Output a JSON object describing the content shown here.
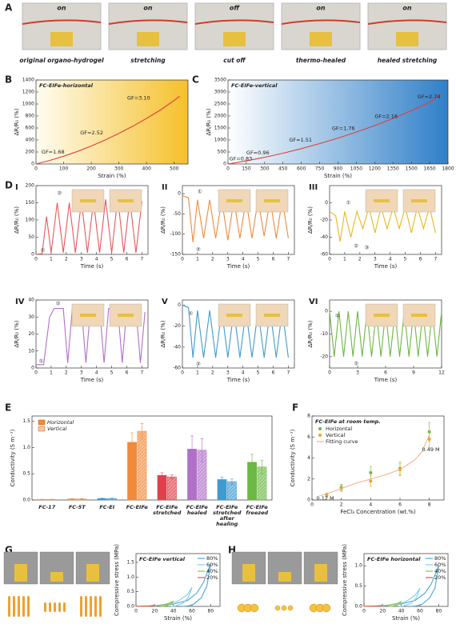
{
  "panel_labels": [
    "A",
    "B",
    "C",
    "D",
    "E",
    "F",
    "G",
    "H"
  ],
  "panel_a": {
    "states": [
      "on",
      "on",
      "off",
      "on",
      "on"
    ],
    "captions": [
      "original organo-hydrogel",
      "stretching",
      "cut off",
      "thermo-healed",
      "healed stretching"
    ]
  },
  "chart_data": [
    {
      "type": "line",
      "title": "FC-EIFe-horizontal",
      "xlabel": "Strain (%)",
      "ylabel": "ΔR/R₀ (%)",
      "color": "#e0403a",
      "background": [
        "#fffdf2",
        "#f5c02a"
      ],
      "xlim": [
        0,
        550
      ],
      "xticks": [
        0,
        100,
        200,
        300,
        400,
        500
      ],
      "ylim": [
        0,
        1400
      ],
      "yticks": [
        0,
        200,
        400,
        600,
        800,
        1000,
        1200,
        1400
      ],
      "x": [
        0,
        50,
        100,
        150,
        200,
        250,
        300,
        350,
        400,
        450,
        500,
        520
      ],
      "values": [
        0,
        60,
        130,
        210,
        300,
        400,
        510,
        630,
        760,
        900,
        1060,
        1130
      ],
      "annotations": [
        {
          "text": "GF=1.68",
          "x": 20,
          "y": 200
        },
        {
          "text": "GF=2.52",
          "x": 160,
          "y": 520
        },
        {
          "text": "GF=3.10",
          "x": 330,
          "y": 1100
        }
      ]
    },
    {
      "type": "line",
      "title": "FC-EIFe-vertical",
      "xlabel": "Strain (%)",
      "ylabel": "ΔR/R₀ (%)",
      "color": "#e0403a",
      "background": [
        "#ffffff",
        "#2f7fc8"
      ],
      "xlim": [
        0,
        1800
      ],
      "xticks": [
        0,
        150,
        300,
        450,
        600,
        750,
        900,
        1050,
        1200,
        1350,
        1500,
        1650,
        1800
      ],
      "ylim": [
        0,
        3500
      ],
      "yticks": [
        0,
        500,
        1000,
        1500,
        2000,
        2500,
        3000,
        3500
      ],
      "x": [
        0,
        150,
        300,
        450,
        600,
        750,
        900,
        1050,
        1200,
        1350,
        1500,
        1650,
        1750
      ],
      "values": [
        0,
        130,
        280,
        450,
        640,
        850,
        1080,
        1330,
        1600,
        1900,
        2220,
        2570,
        2950
      ],
      "annotations": [
        {
          "text": "GF=0.83",
          "x": 10,
          "y": 220
        },
        {
          "text": "GF=0.96",
          "x": 150,
          "y": 470
        },
        {
          "text": "GF=1.51",
          "x": 500,
          "y": 1000
        },
        {
          "text": "GF=1.76",
          "x": 850,
          "y": 1480
        },
        {
          "text": "GF=2.16",
          "x": 1200,
          "y": 1980
        },
        {
          "text": "GF=2.74",
          "x": 1550,
          "y": 2800
        }
      ]
    },
    {
      "type": "line",
      "title": "I",
      "xlabel": "Time (s)",
      "ylabel": "ΔR/R₀ (%)",
      "color": "#e8585a",
      "xlim": [
        0,
        7.4
      ],
      "xticks": [
        0,
        1,
        2,
        3,
        4,
        5,
        6,
        7
      ],
      "ylim": [
        0,
        200
      ],
      "yticks": [
        0,
        50,
        100,
        150,
        200
      ],
      "x": [
        0,
        0.4,
        0.7,
        1.0,
        1.4,
        1.8,
        2.2,
        2.6,
        3.0,
        3.4,
        3.8,
        4.2,
        4.6,
        5.0,
        5.4,
        5.8,
        6.2,
        6.6,
        7.0
      ],
      "values": [
        0,
        2,
        110,
        5,
        150,
        5,
        150,
        5,
        155,
        5,
        155,
        5,
        160,
        5,
        165,
        5,
        160,
        5,
        155
      ],
      "annotations": [
        {
          "text": "①",
          "x": 0.3,
          "y": 12
        },
        {
          "text": "②",
          "x": 1.4,
          "y": 178
        }
      ]
    },
    {
      "type": "line",
      "title": "II",
      "xlabel": "Time (s)",
      "ylabel": "ΔR/R₀ (%)",
      "color": "#f08a3c",
      "xlim": [
        0,
        7.4
      ],
      "xticks": [
        0,
        1,
        2,
        3,
        4,
        5,
        6,
        7
      ],
      "ylim": [
        -150,
        20
      ],
      "yticks": [
        -150,
        -100,
        -50,
        0
      ],
      "x": [
        0,
        0.4,
        0.7,
        1.0,
        1.4,
        1.8,
        2.2,
        2.6,
        3.0,
        3.4,
        3.8,
        4.2,
        4.6,
        5.0,
        5.4,
        5.8,
        6.2,
        6.6,
        7.0
      ],
      "values": [
        -5,
        -10,
        -120,
        -15,
        -110,
        -15,
        -110,
        -15,
        -115,
        -15,
        -110,
        -15,
        -110,
        -15,
        -105,
        -15,
        -110,
        -15,
        -110
      ],
      "annotations": [
        {
          "text": "①",
          "x": 1.0,
          "y": 5
        },
        {
          "text": "②",
          "x": 0.9,
          "y": -138
        }
      ]
    },
    {
      "type": "line",
      "title": "III",
      "xlabel": "Time (s)",
      "ylabel": "ΔR/R₀ (%)",
      "color": "#e8b820",
      "xlim": [
        0,
        7.4
      ],
      "xticks": [
        0,
        1,
        2,
        3,
        4,
        5,
        6,
        7
      ],
      "ylim": [
        -60,
        20
      ],
      "yticks": [
        -60,
        -40,
        -20,
        0
      ],
      "x": [
        0,
        0.4,
        0.7,
        1.0,
        1.4,
        1.8,
        2.2,
        2.6,
        3.0,
        3.4,
        3.8,
        4.2,
        4.6,
        5.0,
        5.4,
        5.8,
        6.2,
        6.6,
        7.0
      ],
      "values": [
        -10,
        -15,
        -45,
        -10,
        -40,
        -10,
        -30,
        -5,
        -35,
        -5,
        -30,
        -5,
        -30,
        -5,
        -35,
        -5,
        -30,
        -5,
        -35
      ],
      "annotations": [
        {
          "text": "①",
          "x": 1.1,
          "y": 0
        },
        {
          "text": "②",
          "x": 1.6,
          "y": -50
        },
        {
          "text": "③",
          "x": 2.3,
          "y": -52
        }
      ]
    },
    {
      "type": "line",
      "title": "IV",
      "xlabel": "Time (s)",
      "ylabel": "ΔR/R₀ (%)",
      "color": "#b070c8",
      "xlim": [
        0,
        7.4
      ],
      "xticks": [
        0,
        1,
        2,
        3,
        4,
        5,
        6,
        7
      ],
      "ylim": [
        0,
        40
      ],
      "yticks": [
        0,
        10,
        20,
        30,
        40
      ],
      "x": [
        0,
        0.5,
        0.9,
        1.2,
        1.8,
        2.1,
        2.4,
        3.0,
        3.3,
        3.6,
        4.2,
        4.5,
        4.8,
        5.4,
        5.7,
        6.0,
        6.6,
        6.9,
        7.2
      ],
      "values": [
        2,
        2,
        30,
        35,
        35,
        3,
        35,
        35,
        3,
        35,
        35,
        3,
        35,
        35,
        3,
        35,
        35,
        3,
        33
      ],
      "annotations": [
        {
          "text": "①",
          "x": 0.2,
          "y": 4
        },
        {
          "text": "②",
          "x": 1.3,
          "y": 38
        }
      ]
    },
    {
      "type": "line",
      "title": "V",
      "xlabel": "Time (s)",
      "ylabel": "ΔR/R₀ (%)",
      "color": "#3f9ad0",
      "xlim": [
        0,
        7.4
      ],
      "xticks": [
        0,
        1,
        2,
        3,
        4,
        5,
        6,
        7
      ],
      "ylim": [
        -60,
        5
      ],
      "yticks": [
        -60,
        -40,
        -20,
        0
      ],
      "x": [
        0,
        0.4,
        0.7,
        1.0,
        1.4,
        1.8,
        2.2,
        2.6,
        3.0,
        3.4,
        3.8,
        4.2,
        4.6,
        5.0,
        5.4,
        5.8,
        6.2,
        6.6,
        7.0
      ],
      "values": [
        0,
        -2,
        -50,
        -5,
        -50,
        -5,
        -50,
        -5,
        -50,
        -5,
        -50,
        -5,
        -50,
        -5,
        -50,
        -5,
        -50,
        -5,
        -50
      ],
      "annotations": [
        {
          "text": "①",
          "x": 0.4,
          "y": -8
        },
        {
          "text": "②",
          "x": 0.9,
          "y": -56
        }
      ]
    },
    {
      "type": "line",
      "title": "VI",
      "xlabel": "Time (s)",
      "ylabel": "ΔR/R₀ (%)",
      "color": "#6cb844",
      "xlim": [
        0,
        12
      ],
      "xticks": [
        0,
        3,
        6,
        9,
        12
      ],
      "ylim": [
        -25,
        5
      ],
      "yticks": [
        -20,
        -10,
        0
      ],
      "x": [
        0,
        0.5,
        1,
        1.5,
        2,
        2.5,
        3,
        3.5,
        4,
        4.5,
        5,
        5.5,
        6,
        6.5,
        7,
        7.5,
        8,
        8.5,
        9,
        9.5,
        10,
        10.5,
        11,
        11.5,
        12
      ],
      "values": [
        0,
        -20,
        0,
        -20,
        0,
        -20,
        0,
        -20,
        0,
        -20,
        0,
        -20,
        0,
        -20,
        0,
        -20,
        0,
        -20,
        0,
        -20,
        0,
        -20,
        0,
        -20,
        0
      ],
      "annotations": [
        {
          "text": "①",
          "x": 0.6,
          "y": -2
        },
        {
          "text": "②",
          "x": 2.6,
          "y": -23
        }
      ]
    },
    {
      "type": "bar",
      "ylabel": "Conductivity (S m⁻¹)",
      "categories": [
        "FC-17",
        "FC-5T",
        "FC-EI",
        "FC-EIFe",
        "FC-EIFe stretched",
        "FC-EIFe healed",
        "FC-EIFe stretched after healing",
        "FC-EIFe freezed"
      ],
      "colors": [
        "#f08a3c",
        "#f08a3c",
        "#3f9ad0",
        "#f08a3c",
        "#e0404a",
        "#b070c8",
        "#3f9ad0",
        "#6cb844"
      ],
      "ylim": [
        0,
        1.6
      ],
      "yticks": [
        {
          "value": 0,
          "label": "0.0"
        },
        0.5,
        {
          "value": 1,
          "label": "1.0"
        },
        1.5
      ],
      "series": [
        {
          "name": "Horizontal",
          "hatch": false,
          "values": [
            0.01,
            0.02,
            0.03,
            1.1,
            0.47,
            0.97,
            0.39,
            0.72
          ],
          "errors": [
            0.005,
            0.005,
            0.005,
            0.18,
            0.05,
            0.25,
            0.05,
            0.15
          ]
        },
        {
          "name": "Vertical",
          "hatch": true,
          "values": [
            0.01,
            0.02,
            0.03,
            1.31,
            0.44,
            0.95,
            0.35,
            0.63
          ],
          "errors": [
            0.005,
            0.005,
            0.005,
            0.15,
            0.04,
            0.22,
            0.05,
            0.13
          ]
        }
      ]
    },
    {
      "type": "scatter",
      "title": "FC-EIFe at room temp.",
      "xlabel": "FeCl₃ Concentration (wt.%)",
      "ylabel": "Conductivity (S m⁻¹)",
      "xlim": [
        0,
        9
      ],
      "xticks": [
        0,
        2,
        4,
        6,
        8
      ],
      "ylim": [
        0,
        8
      ],
      "yticks": [
        0,
        2,
        4,
        6,
        8
      ],
      "series": [
        {
          "name": "Horizontal",
          "color": "#6fb43f",
          "line": false,
          "x": [
            1,
            2,
            4,
            6,
            8
          ],
          "values": [
            0.5,
            1.2,
            2.6,
            3.0,
            6.5
          ],
          "errors": [
            0.15,
            0.3,
            0.6,
            0.6,
            0.9
          ]
        },
        {
          "name": "Vertical",
          "color": "#f0a030",
          "line": false,
          "x": [
            1,
            2,
            4,
            6,
            8
          ],
          "values": [
            0.45,
            1.1,
            1.8,
            2.9,
            5.8
          ],
          "errors": [
            0.15,
            0.3,
            0.5,
            0.6,
            0.8
          ]
        },
        {
          "name": "Fitting curve",
          "color": "#f4b183",
          "line": true,
          "x": [
            0.5,
            1,
            2,
            3,
            4,
            5,
            6,
            7,
            7.5,
            8
          ],
          "values": [
            0.4,
            0.6,
            1.1,
            1.6,
            2.0,
            2.4,
            2.9,
            3.8,
            4.6,
            6.2
          ]
        }
      ],
      "annotations": [
        {
          "text": "0.12 M",
          "x": 0.3,
          "y": 0.15
        },
        {
          "text": "0.49 M",
          "x": 7.5,
          "y": 4.8
        }
      ]
    },
    {
      "type": "line",
      "title": "FC-EIFe vertical",
      "xlabel": "Strain (%)",
      "ylabel": "Compressive stress (MPa)",
      "xlim": [
        0,
        90
      ],
      "xticks": [
        0,
        20,
        40,
        60,
        80
      ],
      "ylim": [
        0,
        1.8
      ],
      "yticks": [
        {
          "value": 0,
          "label": "0.0"
        },
        0.5,
        {
          "value": 1,
          "label": "1.0"
        },
        1.5
      ],
      "series": [
        {
          "name": "80%",
          "color": "#4aa8d8",
          "x": [
            0,
            20,
            40,
            55,
            65,
            72,
            80,
            76,
            70,
            62,
            55,
            50
          ],
          "values": [
            0,
            0.02,
            0.08,
            0.2,
            0.45,
            0.8,
            1.45,
            0.7,
            0.3,
            0.08,
            0.01,
            0
          ]
        },
        {
          "name": "60%",
          "color": "#7fd0e8",
          "x": [
            0,
            20,
            35,
            45,
            55,
            60,
            56,
            50,
            42,
            38
          ],
          "values": [
            0,
            0.02,
            0.08,
            0.18,
            0.4,
            0.65,
            0.3,
            0.1,
            0.01,
            0
          ]
        },
        {
          "name": "40%",
          "color": "#8dc63f",
          "x": [
            0,
            15,
            25,
            35,
            40,
            37,
            32,
            27
          ],
          "values": [
            0,
            0.01,
            0.04,
            0.1,
            0.18,
            0.08,
            0.02,
            0
          ]
        },
        {
          "name": "20%",
          "color": "#e8553f",
          "x": [
            0,
            10,
            15,
            20,
            18,
            14
          ],
          "values": [
            0,
            0.01,
            0.02,
            0.04,
            0.02,
            0
          ]
        }
      ]
    },
    {
      "type": "line",
      "title": "FC-EIFe horizontal",
      "xlabel": "Strain (%)",
      "ylabel": "Compressive stress (MPa)",
      "xlim": [
        0,
        90
      ],
      "xticks": [
        0,
        20,
        40,
        60,
        80
      ],
      "ylim": [
        0,
        1.3
      ],
      "yticks": [
        {
          "value": 0,
          "label": "0.0"
        },
        0.5,
        {
          "value": 1,
          "label": "1.0"
        }
      ],
      "series": [
        {
          "name": "80%",
          "color": "#4aa8d8",
          "x": [
            0,
            20,
            40,
            55,
            65,
            72,
            80,
            76,
            70,
            62,
            55,
            50
          ],
          "values": [
            0,
            0.02,
            0.06,
            0.15,
            0.32,
            0.55,
            1.0,
            0.45,
            0.2,
            0.05,
            0.01,
            0
          ]
        },
        {
          "name": "60%",
          "color": "#7fd0e8",
          "x": [
            0,
            20,
            35,
            45,
            55,
            60,
            56,
            50,
            42,
            38
          ],
          "values": [
            0,
            0.01,
            0.05,
            0.12,
            0.28,
            0.45,
            0.2,
            0.07,
            0.01,
            0
          ]
        },
        {
          "name": "40%",
          "color": "#8dc63f",
          "x": [
            0,
            15,
            25,
            35,
            40,
            37,
            32,
            27
          ],
          "values": [
            0,
            0.01,
            0.03,
            0.07,
            0.12,
            0.05,
            0.01,
            0
          ]
        },
        {
          "name": "20%",
          "color": "#e8553f",
          "x": [
            0,
            10,
            15,
            20,
            18,
            14
          ],
          "values": [
            0,
            0.005,
            0.01,
            0.03,
            0.015,
            0
          ]
        }
      ]
    }
  ]
}
